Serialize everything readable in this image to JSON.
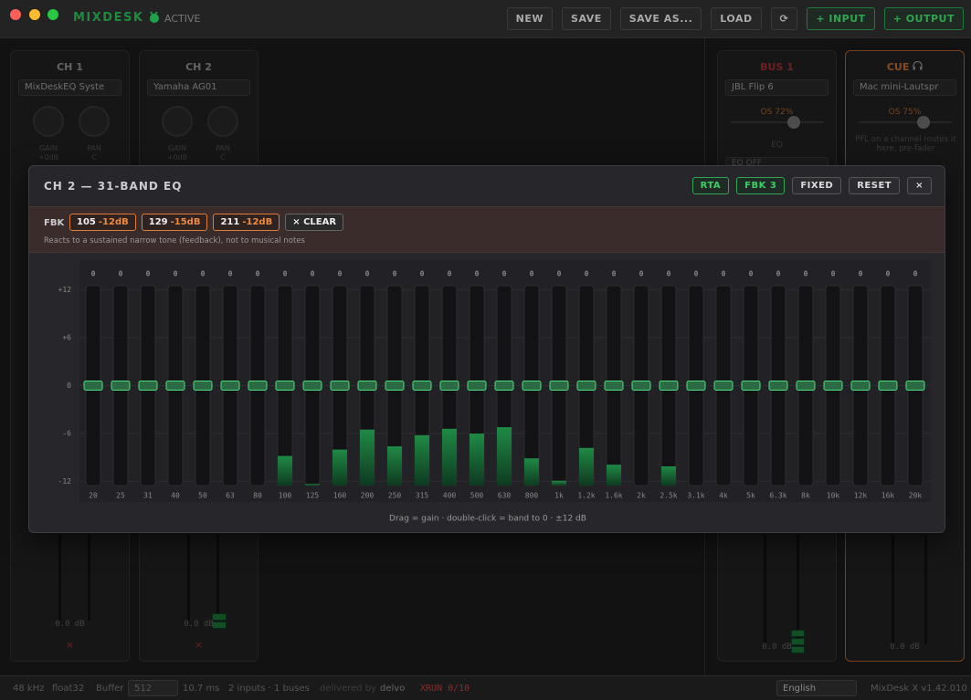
{
  "titlebar": {
    "app": "MIXDESK X",
    "status": "ACTIVE",
    "buttons": [
      "NEW",
      "SAVE",
      "SAVE AS...",
      "LOAD",
      "⟳",
      "+ INPUT",
      "+ OUTPUT"
    ]
  },
  "channels": [
    {
      "name": "CH 1",
      "device": "MixDeskEQ Syste",
      "knobs": [
        {
          "label": "GAIN",
          "value": "+0dB"
        },
        {
          "label": "PAN",
          "value": "C"
        }
      ],
      "level": "0.0 dB",
      "mute": "×"
    },
    {
      "name": "CH 2",
      "device": "Yamaha AG01",
      "knobs": [
        {
          "label": "GAIN",
          "value": "+0dB"
        },
        {
          "label": "PAN",
          "value": "C"
        }
      ],
      "level": "0.0 dB",
      "mute": "×"
    }
  ],
  "outputs": [
    {
      "name": "BUS 1",
      "device": "JBL Flip 6",
      "output_level": "OS 72%",
      "eq_label": "EQ",
      "eq_state": "EQ OFF",
      "level": "0.0 dB"
    },
    {
      "name": "CUE",
      "device": "Mac mini-Lautspr",
      "output_level": "OS 75%",
      "note": "PFL on a channel routes it here, pre-fader",
      "level": "0.0 dB"
    }
  ],
  "eq": {
    "title": "CH 2 — 31-BAND EQ",
    "buttons": [
      "RTA",
      "FBK 3",
      "FIXED",
      "RESET",
      "×"
    ],
    "fbk": {
      "label": "FBK",
      "chips": [
        {
          "freq": "105",
          "gain": "-12dB"
        },
        {
          "freq": "129",
          "gain": "-15dB"
        },
        {
          "freq": "211",
          "gain": "-12dB"
        }
      ],
      "clear": "× CLEAR",
      "note": "Reacts to a sustained narrow tone (feedback), not to musical notes"
    },
    "ylim": [
      -12.5,
      12.5
    ],
    "yticks": [
      {
        "value": 12,
        "label": "+12"
      },
      {
        "value": 6,
        "label": "+6"
      },
      0,
      -6,
      -12
    ],
    "bands": [
      "20",
      "25",
      "31",
      "40",
      "50",
      "63",
      "80",
      "100",
      "125",
      "160",
      "200",
      "250",
      "315",
      "400",
      "500",
      "630",
      "800",
      "1k",
      "1.2k",
      "1.6k",
      "2k",
      "2.5k",
      "3.1k",
      "4k",
      "5k",
      "6.3k",
      "8k",
      "10k",
      "12k",
      "16k",
      "20k"
    ],
    "gains": [
      0,
      0,
      0,
      0,
      0,
      0,
      0,
      0,
      0,
      0,
      0,
      0,
      0,
      0,
      0,
      0,
      0,
      0,
      0,
      0,
      0,
      0,
      0,
      0,
      0,
      0,
      0,
      0,
      0,
      0,
      0
    ],
    "rta": [
      null,
      null,
      null,
      null,
      null,
      null,
      null,
      -8.8,
      -12.3,
      -8.0,
      -5.5,
      -7.6,
      -6.2,
      -5.4,
      -6.0,
      -5.2,
      -9.1,
      -11.9,
      -7.8,
      -9.9,
      null,
      -10.1,
      null,
      null,
      null,
      null,
      null,
      null,
      null,
      null,
      null
    ],
    "hint": "Drag = gain · double-click = band to 0 · ±12 dB"
  },
  "statusbar": {
    "sample_rate": "48 kHz",
    "format": "float32",
    "buffer_label": "Buffer",
    "buffer": "512",
    "latency": "10.7 ms",
    "counts": "2 inputs · 1 buses",
    "credit": "delivered by",
    "brand": "delvo",
    "xrun": "XRUN 0/10",
    "language": "English",
    "version": "MixDesk X v1.42.010"
  }
}
